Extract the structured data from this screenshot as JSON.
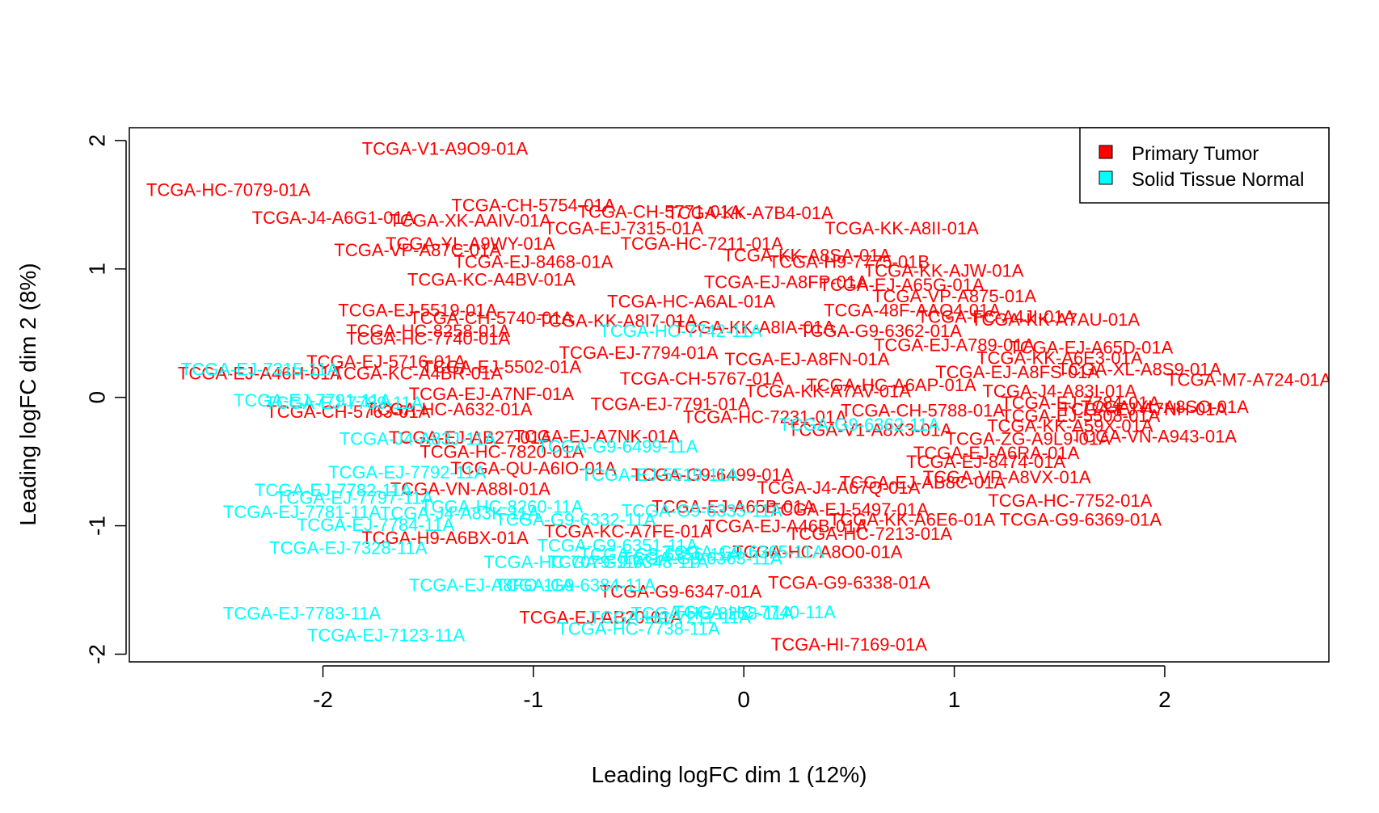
{
  "chart_data": {
    "type": "scatter",
    "title": "",
    "xlabel": "Leading logFC dim 1 (12%)",
    "ylabel": "Leading logFC dim 2 (8%)",
    "xlim": [
      -2.92,
      2.78
    ],
    "ylim": [
      -2.06,
      2.1
    ],
    "x_ticks": [
      -2,
      -1,
      0,
      1,
      2
    ],
    "y_ticks": [
      -2,
      -1,
      0,
      1,
      2
    ],
    "x_tick_labels": [
      "-2",
      "-1",
      "0",
      "1",
      "2"
    ],
    "y_tick_labels": [
      "-2",
      "-1",
      "0",
      "1",
      "2"
    ],
    "grid": false,
    "legend": {
      "position": "top-right",
      "entries": [
        {
          "label": "Primary Tumor",
          "color": "#ff0000"
        },
        {
          "label": "Solid Tissue Normal",
          "color": "#00ffff"
        }
      ]
    },
    "series": [
      {
        "name": "Primary Tumor",
        "color": "#ff0000",
        "points": [
          {
            "label": "TCGA-V1-A9O9-01A",
            "x": -1.42,
            "y": 1.94
          },
          {
            "label": "TCGA-HC-7079-01A",
            "x": -2.45,
            "y": 1.62
          },
          {
            "label": "TCGA-CH-5754-01A",
            "x": -1.0,
            "y": 1.5
          },
          {
            "label": "TCGA-CH-5771-01A",
            "x": -0.4,
            "y": 1.45
          },
          {
            "label": "TCGA-KK-A7B4-01A",
            "x": 0.03,
            "y": 1.44
          },
          {
            "label": "TCGA-J4-A6G1-01A",
            "x": -1.95,
            "y": 1.4
          },
          {
            "label": "TCGA-XK-AAIV-01A",
            "x": -1.3,
            "y": 1.38
          },
          {
            "label": "TCGA-EJ-7315-01A",
            "x": -0.57,
            "y": 1.32
          },
          {
            "label": "TCGA-KK-A8II-01A",
            "x": 0.75,
            "y": 1.32
          },
          {
            "label": "TCGA-VP-A87C-01A",
            "x": -1.55,
            "y": 1.15
          },
          {
            "label": "TCGA-YL-A9WY-01A",
            "x": -1.3,
            "y": 1.2
          },
          {
            "label": "TCGA-HC-7211-01A",
            "x": -0.2,
            "y": 1.2
          },
          {
            "label": "TCGA-EJ-8468-01A",
            "x": -1.0,
            "y": 1.06
          },
          {
            "label": "TCGA-KK-A8SA-01A",
            "x": 0.3,
            "y": 1.11
          },
          {
            "label": "TCGA-H9-7775-01B",
            "x": 0.5,
            "y": 1.06
          },
          {
            "label": "TCGA-KC-A4BV-01A",
            "x": -1.2,
            "y": 0.92
          },
          {
            "label": "TCGA-KK-AJW-01A",
            "x": 0.95,
            "y": 0.99
          },
          {
            "label": "TCGA-EJ-A65G-01A",
            "x": 0.75,
            "y": 0.88
          },
          {
            "label": "TCGA-VP-A875-01A",
            "x": 1.0,
            "y": 0.79
          },
          {
            "label": "TCGA-EJ-5519-01A",
            "x": -1.55,
            "y": 0.68
          },
          {
            "label": "TCGA-CH-5740-01A",
            "x": -1.2,
            "y": 0.62
          },
          {
            "label": "TCGA-48F-AAQ4-01A",
            "x": 0.8,
            "y": 0.68
          },
          {
            "label": "TCGA-FC-A4JI-01A",
            "x": 1.2,
            "y": 0.63
          },
          {
            "label": "TCGA-KK-A7AU-01A",
            "x": 1.48,
            "y": 0.61
          },
          {
            "label": "TCGA-HC-8258-01A",
            "x": -1.5,
            "y": 0.52
          },
          {
            "label": "TCGA-G9-6362-01A",
            "x": 0.65,
            "y": 0.52
          },
          {
            "label": "TCGA-HC-7740-01A",
            "x": -1.5,
            "y": 0.46
          },
          {
            "label": "TCGA-EJ-A789-01A",
            "x": 1.0,
            "y": 0.41
          },
          {
            "label": "TCGA-EJ-A65D-01A",
            "x": 1.65,
            "y": 0.39
          },
          {
            "label": "TCGA-KK-A6E3-01A",
            "x": 1.5,
            "y": 0.31
          },
          {
            "label": "TCGA-EJ-5716-01A",
            "x": -1.7,
            "y": 0.28
          },
          {
            "label": "TCGA-EJ-A46H-01A",
            "x": -2.3,
            "y": 0.19
          },
          {
            "label": "TCGA-KC-A4BR-01A",
            "x": -1.55,
            "y": 0.19
          },
          {
            "label": "TCGA-EJ-5502-01A",
            "x": -1.15,
            "y": 0.24
          },
          {
            "label": "TCGA-XL-A8S9-01A",
            "x": 1.88,
            "y": 0.22
          },
          {
            "label": "TCGA-M7-A724-01A",
            "x": 2.4,
            "y": 0.14
          },
          {
            "label": "TCGA-EJ-A8FS-01A",
            "x": 1.3,
            "y": 0.2
          },
          {
            "label": "TCGA-EJ-A7NF-01A",
            "x": -1.2,
            "y": 0.03
          },
          {
            "label": "TCGA-CH-5763-01A",
            "x": -1.88,
            "y": -0.11
          },
          {
            "label": "TCGA-HC-A632-01A",
            "x": -1.4,
            "y": -0.09
          },
          {
            "label": "TCGA-J4-A83I-01A",
            "x": 1.5,
            "y": 0.05
          },
          {
            "label": "TCGA-EJ-7784-01A",
            "x": 1.6,
            "y": -0.04
          },
          {
            "label": "TCGA-YL-A8SO-01A",
            "x": 2.0,
            "y": -0.07
          },
          {
            "label": "TCGA-EJ-A7NH-01A",
            "x": 1.9,
            "y": -0.09
          },
          {
            "label": "TCGA-EJ-5508-01A",
            "x": 1.6,
            "y": -0.14
          },
          {
            "label": "TCGA-KK-A59X-01A",
            "x": 1.55,
            "y": -0.22
          },
          {
            "label": "TCGA-VN-A943-01A",
            "x": 1.95,
            "y": -0.3
          },
          {
            "label": "TCGA-ZG-A9L9-01A",
            "x": 1.35,
            "y": -0.32
          },
          {
            "label": "TCGA-EJ-A6RA-01A",
            "x": 1.2,
            "y": -0.43
          },
          {
            "label": "TCGA-EJ-AB27-01A",
            "x": -1.3,
            "y": -0.31
          },
          {
            "label": "TCGA-HC-7820-01A",
            "x": -1.15,
            "y": -0.42
          },
          {
            "label": "TCGA-EJ-8474-01A",
            "x": 1.15,
            "y": -0.5
          },
          {
            "label": "TCGA-QU-A6IO-01A",
            "x": -1.0,
            "y": -0.55
          },
          {
            "label": "TCGA-VP-A8VX-01A",
            "x": 1.25,
            "y": -0.62
          },
          {
            "label": "TCGA-EJ-AB8C-01A",
            "x": 0.85,
            "y": -0.66
          },
          {
            "label": "TCGA-VN-A88I-01A",
            "x": -1.3,
            "y": -0.71
          },
          {
            "label": "TCGA-HC-7752-01A",
            "x": 1.55,
            "y": -0.8
          },
          {
            "label": "TCGA-EJ-5497-01A",
            "x": 0.5,
            "y": -0.87
          },
          {
            "label": "TCGA-KK-A6E6-01A",
            "x": 0.8,
            "y": -0.95
          },
          {
            "label": "TCGA-G9-6369-01A",
            "x": 1.6,
            "y": -0.95
          },
          {
            "label": "TCGA-EJ-A46B-01A",
            "x": 0.2,
            "y": -1.0
          },
          {
            "label": "TCGA-HC-7213-01A",
            "x": 0.6,
            "y": -1.06
          },
          {
            "label": "TCGA-H9-A6BX-01A",
            "x": -1.42,
            "y": -1.09
          },
          {
            "label": "TCGA-KC-A7FE-01A",
            "x": -0.55,
            "y": -1.04
          },
          {
            "label": "TCGA-HC-A8O0-01A",
            "x": 0.35,
            "y": -1.2
          },
          {
            "label": "TCGA-G9-6338-01A",
            "x": 0.5,
            "y": -1.44
          },
          {
            "label": "TCGA-G9-6347-01A",
            "x": -0.3,
            "y": -1.51
          },
          {
            "label": "TCGA-EJ-AB20-01A",
            "x": -0.68,
            "y": -1.71
          },
          {
            "label": "TCGA-HI-7169-01A",
            "x": 0.5,
            "y": -1.92
          },
          {
            "label": "TCGA-EJ-A8FN-01A",
            "x": 0.3,
            "y": 0.3
          },
          {
            "label": "TCGA-CH-5767-01A",
            "x": -0.2,
            "y": 0.15
          },
          {
            "label": "TCGA-KK-A7AV-01A",
            "x": 0.4,
            "y": 0.05
          },
          {
            "label": "TCGA-EJ-7791-01A",
            "x": -0.35,
            "y": -0.05
          },
          {
            "label": "TCGA-HC-7231-01A",
            "x": 0.1,
            "y": -0.15
          },
          {
            "label": "TCGA-V1-A8X3-01A",
            "x": 0.6,
            "y": -0.25
          },
          {
            "label": "TCGA-EJ-7794-01A",
            "x": -0.5,
            "y": 0.35
          },
          {
            "label": "TCGA-KK-A8IA-01A",
            "x": 0.05,
            "y": 0.55
          },
          {
            "label": "TCGA-HC-A6AL-01A",
            "x": -0.25,
            "y": 0.75
          },
          {
            "label": "TCGA-EJ-A8FP-01A",
            "x": 0.2,
            "y": 0.9
          },
          {
            "label": "TCGA-G9-6499-01A",
            "x": -0.15,
            "y": -0.6
          },
          {
            "label": "TCGA-J4-A67Q-01A",
            "x": 0.45,
            "y": -0.7
          },
          {
            "label": "TCGA-EJ-A65B-01A",
            "x": -0.05,
            "y": -0.85
          },
          {
            "label": "TCGA-HC-A6AP-01A",
            "x": 0.7,
            "y": 0.1
          },
          {
            "label": "TCGA-KK-A8I7-01A",
            "x": -0.6,
            "y": 0.6
          },
          {
            "label": "TCGA-CH-5788-01A",
            "x": 0.85,
            "y": -0.1
          },
          {
            "label": "TCGA-EJ-A7NK-01A",
            "x": -0.7,
            "y": -0.3
          }
        ]
      },
      {
        "name": "Solid Tissue Normal",
        "color": "#00ffff",
        "points": [
          {
            "label": "TCGA-EJ-7315-11A",
            "x": -2.3,
            "y": 0.22
          },
          {
            "label": "TCGA-EJ-7791-11A",
            "x": -2.05,
            "y": -0.02
          },
          {
            "label": "TCGA-EJ-7789-11A",
            "x": -1.9,
            "y": -0.04
          },
          {
            "label": "TCGA-J4-A83J-11A",
            "x": -1.55,
            "y": -0.32
          },
          {
            "label": "TCGA-EJ-7781-11A",
            "x": -2.1,
            "y": -0.89
          },
          {
            "label": "TCGA-EJ-7782-11A",
            "x": -1.95,
            "y": -0.72
          },
          {
            "label": "TCGA-EJ-7797-11A",
            "x": -1.85,
            "y": -0.78
          },
          {
            "label": "TCGA-EJ-7784-11A",
            "x": -1.75,
            "y": -0.99
          },
          {
            "label": "TCGA-EJ-7792-11A",
            "x": -1.6,
            "y": -0.58
          },
          {
            "label": "TCGA-EJ-7328-11A",
            "x": -1.88,
            "y": -1.17
          },
          {
            "label": "TCGA-EJ-A8FO-11A",
            "x": -1.2,
            "y": -1.46
          },
          {
            "label": "TCGA-G9-6384-11A",
            "x": -0.8,
            "y": -1.46
          },
          {
            "label": "TCGA-EJ-7783-11A",
            "x": -2.1,
            "y": -1.68
          },
          {
            "label": "TCGA-EJ-7123-11A",
            "x": -1.7,
            "y": -1.85
          },
          {
            "label": "TCGA-G9-6499-11A",
            "x": -0.6,
            "y": -0.38
          },
          {
            "label": "TCGA-G9-6362-11A",
            "x": 0.55,
            "y": -0.21
          },
          {
            "label": "TCGA-HC-7738-11A",
            "x": -0.5,
            "y": -1.8
          },
          {
            "label": "TCGA-HC-7211-11A",
            "x": -0.35,
            "y": -1.71
          },
          {
            "label": "TCGA-HC-8258-11A",
            "x": -0.15,
            "y": -1.68
          },
          {
            "label": "TCGA-HC-7740-11A",
            "x": 0.05,
            "y": -1.67
          },
          {
            "label": "TCGA-G9-6351-11A",
            "x": -0.6,
            "y": -1.15
          },
          {
            "label": "TCGA-G9-6356-11A",
            "x": -0.4,
            "y": -1.22
          },
          {
            "label": "TCGA-G9-6363-11A",
            "x": -0.2,
            "y": -1.25
          },
          {
            "label": "TCGA-G9-6365-11A",
            "x": 0.0,
            "y": -1.2
          },
          {
            "label": "TCGA-G9-6348-11A",
            "x": -0.55,
            "y": -1.28
          },
          {
            "label": "TCGA-HC-7079-11A",
            "x": -0.85,
            "y": -1.28
          },
          {
            "label": "TCGA-G9-6333-11A",
            "x": -0.2,
            "y": -0.88
          },
          {
            "label": "TCGA-EJ-5519-11A",
            "x": -0.4,
            "y": -0.6
          },
          {
            "label": "TCGA-HC-7742-11A",
            "x": -0.3,
            "y": 0.52
          },
          {
            "label": "TCGA-G9-6332-11A",
            "x": -0.8,
            "y": -0.95
          },
          {
            "label": "TCGA-J4-A83K-11A",
            "x": -1.35,
            "y": -0.9
          },
          {
            "label": "TCGA-HC-8260-11A",
            "x": -1.15,
            "y": -0.85
          }
        ]
      }
    ]
  }
}
